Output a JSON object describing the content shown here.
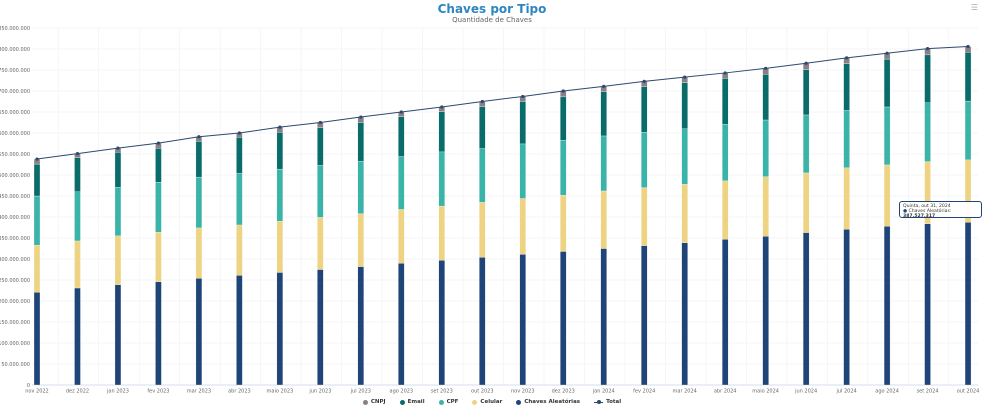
{
  "chart_data": {
    "type": "bar",
    "stacked": true,
    "title": "Chaves por Tipo",
    "subtitle": "Quantidade de Chaves",
    "categories": [
      "nov 2022",
      "dez 2022",
      "jan 2023",
      "fev 2023",
      "mar 2023",
      "abr 2023",
      "maio 2023",
      "jun 2023",
      "jul 2023",
      "ago 2023",
      "set 2023",
      "out 2023",
      "nov 2023",
      "dez 2023",
      "jan 2024",
      "fev 2024",
      "mar 2024",
      "abr 2024",
      "maio 2024",
      "jun 2024",
      "jul 2024",
      "ago 2024",
      "set 2024",
      "out 2024"
    ],
    "ylim": [
      0,
      850000000
    ],
    "yticks": [
      "0",
      "50.000.000",
      "100.000.000",
      "150.000.000",
      "200.000.000",
      "250.000.000",
      "300.000.000",
      "350.000.000",
      "400.000.000",
      "450.000.000",
      "500.000.000",
      "550.000.000",
      "600.000.000",
      "650.000.000",
      "700.000.000",
      "750.000.000",
      "800.000.000",
      "850.000.000"
    ],
    "grid": true,
    "legend_position": "bottom",
    "series": [
      {
        "name": "Chaves Aleatórias",
        "color": "#1f4578",
        "values": [
          221000000,
          231000000,
          239000000,
          246000000,
          254000000,
          261000000,
          268000000,
          275000000,
          282000000,
          290000000,
          297000000,
          304000000,
          311000000,
          318000000,
          325000000,
          332000000,
          339000000,
          347000000,
          354000000,
          363000000,
          371000000,
          378000000,
          384000000,
          387527317
        ]
      },
      {
        "name": "Celular",
        "color": "#edd382",
        "values": [
          112000000,
          112000000,
          116000000,
          118000000,
          120000000,
          120000000,
          122000000,
          124000000,
          126000000,
          128000000,
          129000000,
          131000000,
          133000000,
          134000000,
          137000000,
          138000000,
          139000000,
          139000000,
          142000000,
          142000000,
          146000000,
          146000000,
          148000000,
          148500000
        ]
      },
      {
        "name": "CPF",
        "color": "#3ab3a8",
        "values": [
          117000000,
          117000000,
          116000000,
          119000000,
          121000000,
          123000000,
          124000000,
          124000000,
          125000000,
          126000000,
          129000000,
          128000000,
          130000000,
          131000000,
          131000000,
          132000000,
          132000000,
          135000000,
          135000000,
          138000000,
          137000000,
          138000000,
          140000000,
          140000000
        ]
      },
      {
        "name": "Email",
        "color": "#0a6b6b",
        "values": [
          76000000,
          81000000,
          83000000,
          81000000,
          85000000,
          86000000,
          88000000,
          90000000,
          92000000,
          95000000,
          96000000,
          100000000,
          101000000,
          103000000,
          105000000,
          108000000,
          110000000,
          109000000,
          109000000,
          108000000,
          111000000,
          114000000,
          114000000,
          116000000
        ]
      },
      {
        "name": "CNPJ",
        "color": "#8a7f86",
        "values": [
          12000000,
          10000000,
          10000000,
          12000000,
          11000000,
          10000000,
          12000000,
          12000000,
          13000000,
          11000000,
          11000000,
          12000000,
          12000000,
          14000000,
          13000000,
          13000000,
          13000000,
          13000000,
          14000000,
          15000000,
          14000000,
          14000000,
          15000000,
          14000000
        ]
      }
    ],
    "line_series": {
      "name": "Total",
      "color": "#2c4a6e"
    },
    "legend_order": [
      "CNPJ",
      "Email",
      "CPF",
      "Celular",
      "Chaves Aleatórias",
      "Total"
    ]
  },
  "menu_icon": "hamburger-icon",
  "tooltip": {
    "date": "Quinta, out 31, 2024",
    "series": "Chaves Aleatórias:",
    "value": "387.527.317",
    "color": "#1f4578"
  }
}
